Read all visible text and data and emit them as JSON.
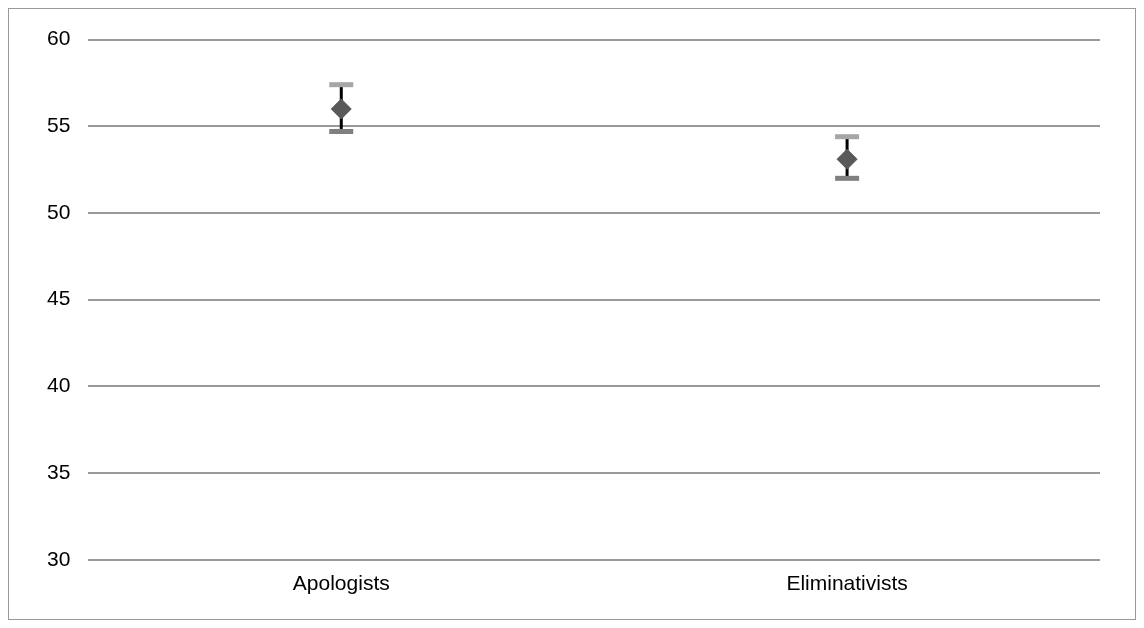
{
  "chart_data": {
    "type": "scatter",
    "categories": [
      "Apologists",
      "Eliminativists"
    ],
    "series": [
      {
        "color": "#595959",
        "values": [
          56.0,
          53.1
        ],
        "errors": [
          [
            54.7,
            57.4
          ],
          [
            52.0,
            54.4
          ]
        ]
      }
    ],
    "ylim": [
      30,
      60
    ],
    "yticks": [
      30,
      35,
      40,
      45,
      50,
      55,
      60
    ],
    "grid": "y",
    "marker": "diamond",
    "legend": false
  }
}
